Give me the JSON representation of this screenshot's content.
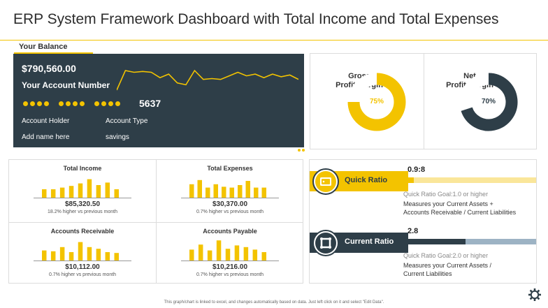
{
  "page": {
    "title": "ERP System Framework Dashboard with Total Income and Total Expenses",
    "footer": "This graph/chart is linked to excel, and changes automatically based on data. Just left click on it and select \"Edit Data\"."
  },
  "balance": {
    "tab_label": "Your Balance",
    "amount": "$790,560.00",
    "account_number_label": "Your Account Number",
    "account_number": "5637",
    "account_holder_label": "Account Holder",
    "account_holder_value": "Add name here",
    "account_type_label": "Account Type",
    "account_type_value": "savings"
  },
  "margins": {
    "gross": {
      "title_line1": "Gross",
      "title_line2": "Profit Margin",
      "percent_label": "75%",
      "value": 75,
      "color": "#f3c300"
    },
    "net": {
      "title_line1": "Net",
      "title_line2": "Profit Margin",
      "percent_label": "70%",
      "value": 70,
      "color": "#2e3e48"
    }
  },
  "metrics": [
    {
      "title": "Total Income",
      "value": "$85,320.50",
      "sub": "18.2% higher vs previous month"
    },
    {
      "title": "Total Expenses",
      "value": "$30,370.00",
      "sub": "0.7% higher vs previous month"
    },
    {
      "title": "Accounts Receivable",
      "value": "$10,112.00",
      "sub": "0.7% higher vs previous month"
    },
    {
      "title": "Accounts Payable",
      "value": "$10,216.00",
      "sub": "0.7% higher vs previous month"
    }
  ],
  "ratios": {
    "quick": {
      "label": "Quick Ratio",
      "value": "0.9:8",
      "goal": "Quick Ratio Goal:1.0 or higher",
      "desc_line1": "Measures your Current Assets +",
      "desc_line2": "Accounts Receivable / Current Liabilities",
      "fill_fraction": 0.05
    },
    "current": {
      "label": "Current Ratio",
      "value": "2.8",
      "goal": "Quick Ratio Goal:2.0 or higher",
      "desc_line1": "Measures your Current Assets /",
      "desc_line2": "Current Liabilities",
      "fill_fraction": 0.45
    }
  },
  "colors": {
    "accent": "#f3c300",
    "dark": "#2e3e48",
    "light_yellow": "#fae69a",
    "light_blue": "#9db3c4"
  },
  "chart_data": [
    {
      "type": "line",
      "name": "balance-sparkline",
      "values": [
        1,
        12,
        11,
        11.5,
        11,
        8,
        10,
        5,
        4,
        12,
        7,
        7.5,
        7,
        9,
        11,
        9,
        10,
        8,
        10,
        8.5,
        9.5,
        7
      ]
    },
    {
      "type": "donut",
      "name": "gross-profit-margin",
      "value": 75
    },
    {
      "type": "donut",
      "name": "net-profit-margin",
      "value": 70
    },
    {
      "type": "bar",
      "name": "total-income-bars",
      "values": [
        10,
        10,
        12,
        14,
        17,
        22,
        15,
        18,
        10
      ]
    },
    {
      "type": "bar",
      "name": "total-expenses-bars",
      "values": [
        16,
        21,
        12,
        16,
        13,
        12,
        15,
        20,
        12,
        12
      ]
    },
    {
      "type": "bar",
      "name": "accounts-receivable-bars",
      "values": [
        12,
        11,
        16,
        10,
        22,
        16,
        14,
        10,
        9
      ]
    },
    {
      "type": "bar",
      "name": "accounts-payable-bars",
      "values": [
        13,
        19,
        12,
        24,
        14,
        18,
        16,
        13,
        10
      ]
    }
  ]
}
